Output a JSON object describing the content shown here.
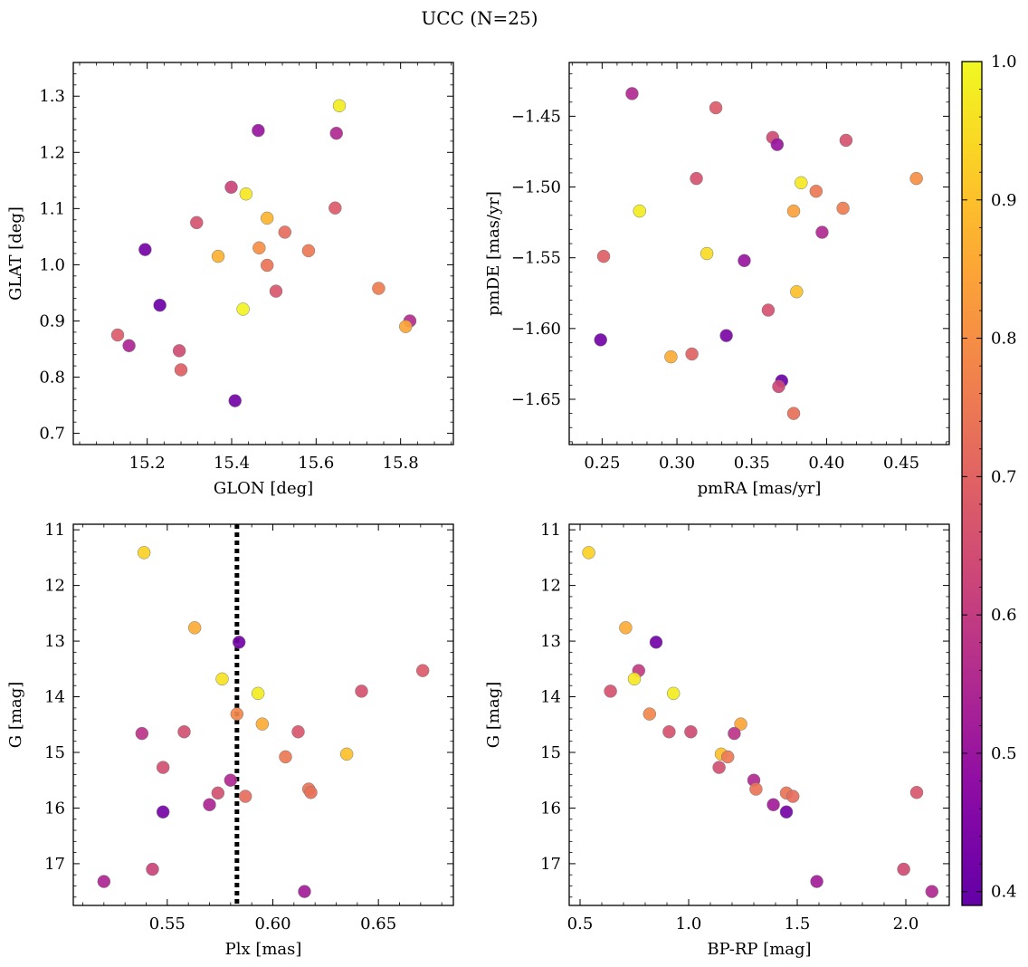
{
  "figure": {
    "title": "UCC (N=25)"
  },
  "colorbar": {
    "colormap": "plasma",
    "range": [
      0.39,
      1.0
    ],
    "ticks": [
      0.4,
      0.5,
      0.6,
      0.7,
      0.8,
      0.9,
      1.0
    ],
    "tick_labels": [
      "0.4",
      "0.5",
      "0.6",
      "0.7",
      "0.8",
      "0.9",
      "1.0"
    ]
  },
  "chart_data": [
    {
      "type": "scatter",
      "xlabel": "GLON [deg]",
      "ylabel": "GLAT [deg]",
      "xlim": [
        15.025,
        15.925
      ],
      "ylim": [
        0.68,
        1.36
      ],
      "y_inverted": false,
      "xticks": [
        15.2,
        15.4,
        15.6,
        15.8
      ],
      "xtick_labels": [
        "15.2",
        "15.4",
        "15.6",
        "15.8"
      ],
      "yticks": [
        0.7,
        0.8,
        0.9,
        1.0,
        1.1,
        1.2,
        1.3
      ],
      "ytick_labels": [
        "0.7",
        "0.8",
        "0.9",
        "1.0",
        "1.1",
        "1.2",
        "1.3"
      ],
      "vline": null,
      "points": [
        {
          "x": 15.655,
          "y": 1.283,
          "c": 0.98
        },
        {
          "x": 15.463,
          "y": 1.239,
          "c": 0.5
        },
        {
          "x": 15.648,
          "y": 1.234,
          "c": 0.55
        },
        {
          "x": 15.399,
          "y": 1.138,
          "c": 0.62
        },
        {
          "x": 15.434,
          "y": 1.126,
          "c": 0.97
        },
        {
          "x": 15.317,
          "y": 1.075,
          "c": 0.66
        },
        {
          "x": 15.484,
          "y": 1.083,
          "c": 0.88
        },
        {
          "x": 15.645,
          "y": 1.101,
          "c": 0.68
        },
        {
          "x": 15.526,
          "y": 1.058,
          "c": 0.72
        },
        {
          "x": 15.195,
          "y": 1.027,
          "c": 0.43
        },
        {
          "x": 15.465,
          "y": 1.03,
          "c": 0.8
        },
        {
          "x": 15.368,
          "y": 1.015,
          "c": 0.87
        },
        {
          "x": 15.582,
          "y": 1.025,
          "c": 0.75
        },
        {
          "x": 15.484,
          "y": 0.999,
          "c": 0.74
        },
        {
          "x": 15.505,
          "y": 0.953,
          "c": 0.67
        },
        {
          "x": 15.748,
          "y": 0.958,
          "c": 0.76
        },
        {
          "x": 15.23,
          "y": 0.928,
          "c": 0.41
        },
        {
          "x": 15.427,
          "y": 0.921,
          "c": 0.99
        },
        {
          "x": 15.822,
          "y": 0.9,
          "c": 0.56
        },
        {
          "x": 15.812,
          "y": 0.89,
          "c": 0.85
        },
        {
          "x": 15.13,
          "y": 0.875,
          "c": 0.68
        },
        {
          "x": 15.157,
          "y": 0.856,
          "c": 0.54
        },
        {
          "x": 15.276,
          "y": 0.847,
          "c": 0.64
        },
        {
          "x": 15.28,
          "y": 0.813,
          "c": 0.69
        },
        {
          "x": 15.408,
          "y": 0.758,
          "c": 0.42
        }
      ]
    },
    {
      "type": "scatter",
      "xlabel": "pmRA [mas/yr]",
      "ylabel": "pmDE [mas/yr]",
      "xlim": [
        0.228,
        0.482
      ],
      "ylim": [
        -1.682,
        -1.412
      ],
      "y_inverted": false,
      "xticks": [
        0.25,
        0.3,
        0.35,
        0.4,
        0.45
      ],
      "xtick_labels": [
        "0.25",
        "0.30",
        "0.35",
        "0.40",
        "0.45"
      ],
      "yticks": [
        -1.65,
        -1.6,
        -1.55,
        -1.5,
        -1.45
      ],
      "ytick_labels": [
        "−1.65",
        "−1.60",
        "−1.55",
        "−1.50",
        "−1.45"
      ],
      "vline": null,
      "points": [
        {
          "x": 0.27,
          "y": -1.434,
          "c": 0.55
        },
        {
          "x": 0.326,
          "y": -1.444,
          "c": 0.68
        },
        {
          "x": 0.364,
          "y": -1.465,
          "c": 0.64
        },
        {
          "x": 0.367,
          "y": -1.47,
          "c": 0.5
        },
        {
          "x": 0.413,
          "y": -1.467,
          "c": 0.66
        },
        {
          "x": 0.313,
          "y": -1.494,
          "c": 0.66
        },
        {
          "x": 0.383,
          "y": -1.497,
          "c": 0.97
        },
        {
          "x": 0.393,
          "y": -1.503,
          "c": 0.75
        },
        {
          "x": 0.46,
          "y": -1.494,
          "c": 0.8
        },
        {
          "x": 0.275,
          "y": -1.517,
          "c": 0.98
        },
        {
          "x": 0.378,
          "y": -1.517,
          "c": 0.84
        },
        {
          "x": 0.411,
          "y": -1.515,
          "c": 0.76
        },
        {
          "x": 0.397,
          "y": -1.532,
          "c": 0.55
        },
        {
          "x": 0.251,
          "y": -1.549,
          "c": 0.69
        },
        {
          "x": 0.32,
          "y": -1.547,
          "c": 0.95
        },
        {
          "x": 0.345,
          "y": -1.552,
          "c": 0.5
        },
        {
          "x": 0.38,
          "y": -1.574,
          "c": 0.9
        },
        {
          "x": 0.361,
          "y": -1.587,
          "c": 0.66
        },
        {
          "x": 0.249,
          "y": -1.608,
          "c": 0.42
        },
        {
          "x": 0.333,
          "y": -1.605,
          "c": 0.44
        },
        {
          "x": 0.296,
          "y": -1.62,
          "c": 0.86
        },
        {
          "x": 0.31,
          "y": -1.618,
          "c": 0.7
        },
        {
          "x": 0.37,
          "y": -1.637,
          "c": 0.41
        },
        {
          "x": 0.368,
          "y": -1.641,
          "c": 0.63
        },
        {
          "x": 0.378,
          "y": -1.66,
          "c": 0.73
        }
      ]
    },
    {
      "type": "scatter",
      "xlabel": "Plx [mas]",
      "ylabel": "G [mag]",
      "xlim": [
        0.5055,
        0.6855
      ],
      "ylim": [
        17.75,
        10.9
      ],
      "y_inverted": true,
      "xticks": [
        0.55,
        0.6,
        0.65
      ],
      "xtick_labels": [
        "0.55",
        "0.60",
        "0.65"
      ],
      "yticks": [
        11,
        12,
        13,
        14,
        15,
        16,
        17
      ],
      "ytick_labels": [
        "11",
        "12",
        "13",
        "14",
        "15",
        "16",
        "17"
      ],
      "vline": {
        "x": 0.583,
        "style": "dotted"
      },
      "points": [
        {
          "x": 0.539,
          "y": 11.41,
          "c": 0.93
        },
        {
          "x": 0.563,
          "y": 12.76,
          "c": 0.86
        },
        {
          "x": 0.584,
          "y": 13.02,
          "c": 0.42
        },
        {
          "x": 0.671,
          "y": 13.53,
          "c": 0.68
        },
        {
          "x": 0.576,
          "y": 13.68,
          "c": 0.96
        },
        {
          "x": 0.642,
          "y": 13.9,
          "c": 0.66
        },
        {
          "x": 0.593,
          "y": 13.94,
          "c": 0.98
        },
        {
          "x": 0.583,
          "y": 14.31,
          "c": 0.78
        },
        {
          "x": 0.595,
          "y": 14.49,
          "c": 0.86
        },
        {
          "x": 0.538,
          "y": 14.66,
          "c": 0.58
        },
        {
          "x": 0.558,
          "y": 14.63,
          "c": 0.65
        },
        {
          "x": 0.612,
          "y": 14.63,
          "c": 0.67
        },
        {
          "x": 0.635,
          "y": 15.03,
          "c": 0.9
        },
        {
          "x": 0.606,
          "y": 15.08,
          "c": 0.75
        },
        {
          "x": 0.548,
          "y": 15.27,
          "c": 0.65
        },
        {
          "x": 0.58,
          "y": 15.5,
          "c": 0.55
        },
        {
          "x": 0.574,
          "y": 15.73,
          "c": 0.65
        },
        {
          "x": 0.617,
          "y": 15.66,
          "c": 0.74
        },
        {
          "x": 0.618,
          "y": 15.72,
          "c": 0.73
        },
        {
          "x": 0.587,
          "y": 15.79,
          "c": 0.72
        },
        {
          "x": 0.57,
          "y": 15.94,
          "c": 0.54
        },
        {
          "x": 0.548,
          "y": 16.07,
          "c": 0.43
        },
        {
          "x": 0.543,
          "y": 17.1,
          "c": 0.62
        },
        {
          "x": 0.52,
          "y": 17.32,
          "c": 0.54
        },
        {
          "x": 0.615,
          "y": 17.5,
          "c": 0.52
        }
      ]
    },
    {
      "type": "scatter",
      "xlabel": "BP-RP [mag]",
      "ylabel": "G [mag]",
      "xlim": [
        0.45,
        2.2
      ],
      "ylim": [
        17.75,
        10.9
      ],
      "y_inverted": true,
      "xticks": [
        0.5,
        1.0,
        1.5,
        2.0
      ],
      "xtick_labels": [
        "0.5",
        "1.0",
        "1.5",
        "2.0"
      ],
      "yticks": [
        11,
        12,
        13,
        14,
        15,
        16,
        17
      ],
      "ytick_labels": [
        "11",
        "12",
        "13",
        "14",
        "15",
        "16",
        "17"
      ],
      "vline": null,
      "points": [
        {
          "x": 0.54,
          "y": 11.41,
          "c": 0.93
        },
        {
          "x": 0.71,
          "y": 12.76,
          "c": 0.86
        },
        {
          "x": 0.85,
          "y": 13.02,
          "c": 0.42
        },
        {
          "x": 0.77,
          "y": 13.53,
          "c": 0.6
        },
        {
          "x": 0.75,
          "y": 13.68,
          "c": 0.97
        },
        {
          "x": 0.64,
          "y": 13.9,
          "c": 0.66
        },
        {
          "x": 0.93,
          "y": 13.94,
          "c": 0.98
        },
        {
          "x": 0.82,
          "y": 14.31,
          "c": 0.78
        },
        {
          "x": 1.24,
          "y": 14.49,
          "c": 0.85
        },
        {
          "x": 0.91,
          "y": 14.63,
          "c": 0.66
        },
        {
          "x": 1.01,
          "y": 14.63,
          "c": 0.64
        },
        {
          "x": 1.21,
          "y": 14.66,
          "c": 0.58
        },
        {
          "x": 1.15,
          "y": 15.03,
          "c": 0.9
        },
        {
          "x": 1.18,
          "y": 15.08,
          "c": 0.75
        },
        {
          "x": 1.14,
          "y": 15.27,
          "c": 0.65
        },
        {
          "x": 1.3,
          "y": 15.5,
          "c": 0.55
        },
        {
          "x": 1.31,
          "y": 15.66,
          "c": 0.74
        },
        {
          "x": 1.45,
          "y": 15.73,
          "c": 0.74
        },
        {
          "x": 1.48,
          "y": 15.79,
          "c": 0.72
        },
        {
          "x": 2.05,
          "y": 15.72,
          "c": 0.67
        },
        {
          "x": 1.39,
          "y": 15.94,
          "c": 0.52
        },
        {
          "x": 1.45,
          "y": 16.07,
          "c": 0.43
        },
        {
          "x": 1.99,
          "y": 17.1,
          "c": 0.64
        },
        {
          "x": 1.59,
          "y": 17.32,
          "c": 0.52
        },
        {
          "x": 2.12,
          "y": 17.5,
          "c": 0.55
        }
      ]
    }
  ]
}
